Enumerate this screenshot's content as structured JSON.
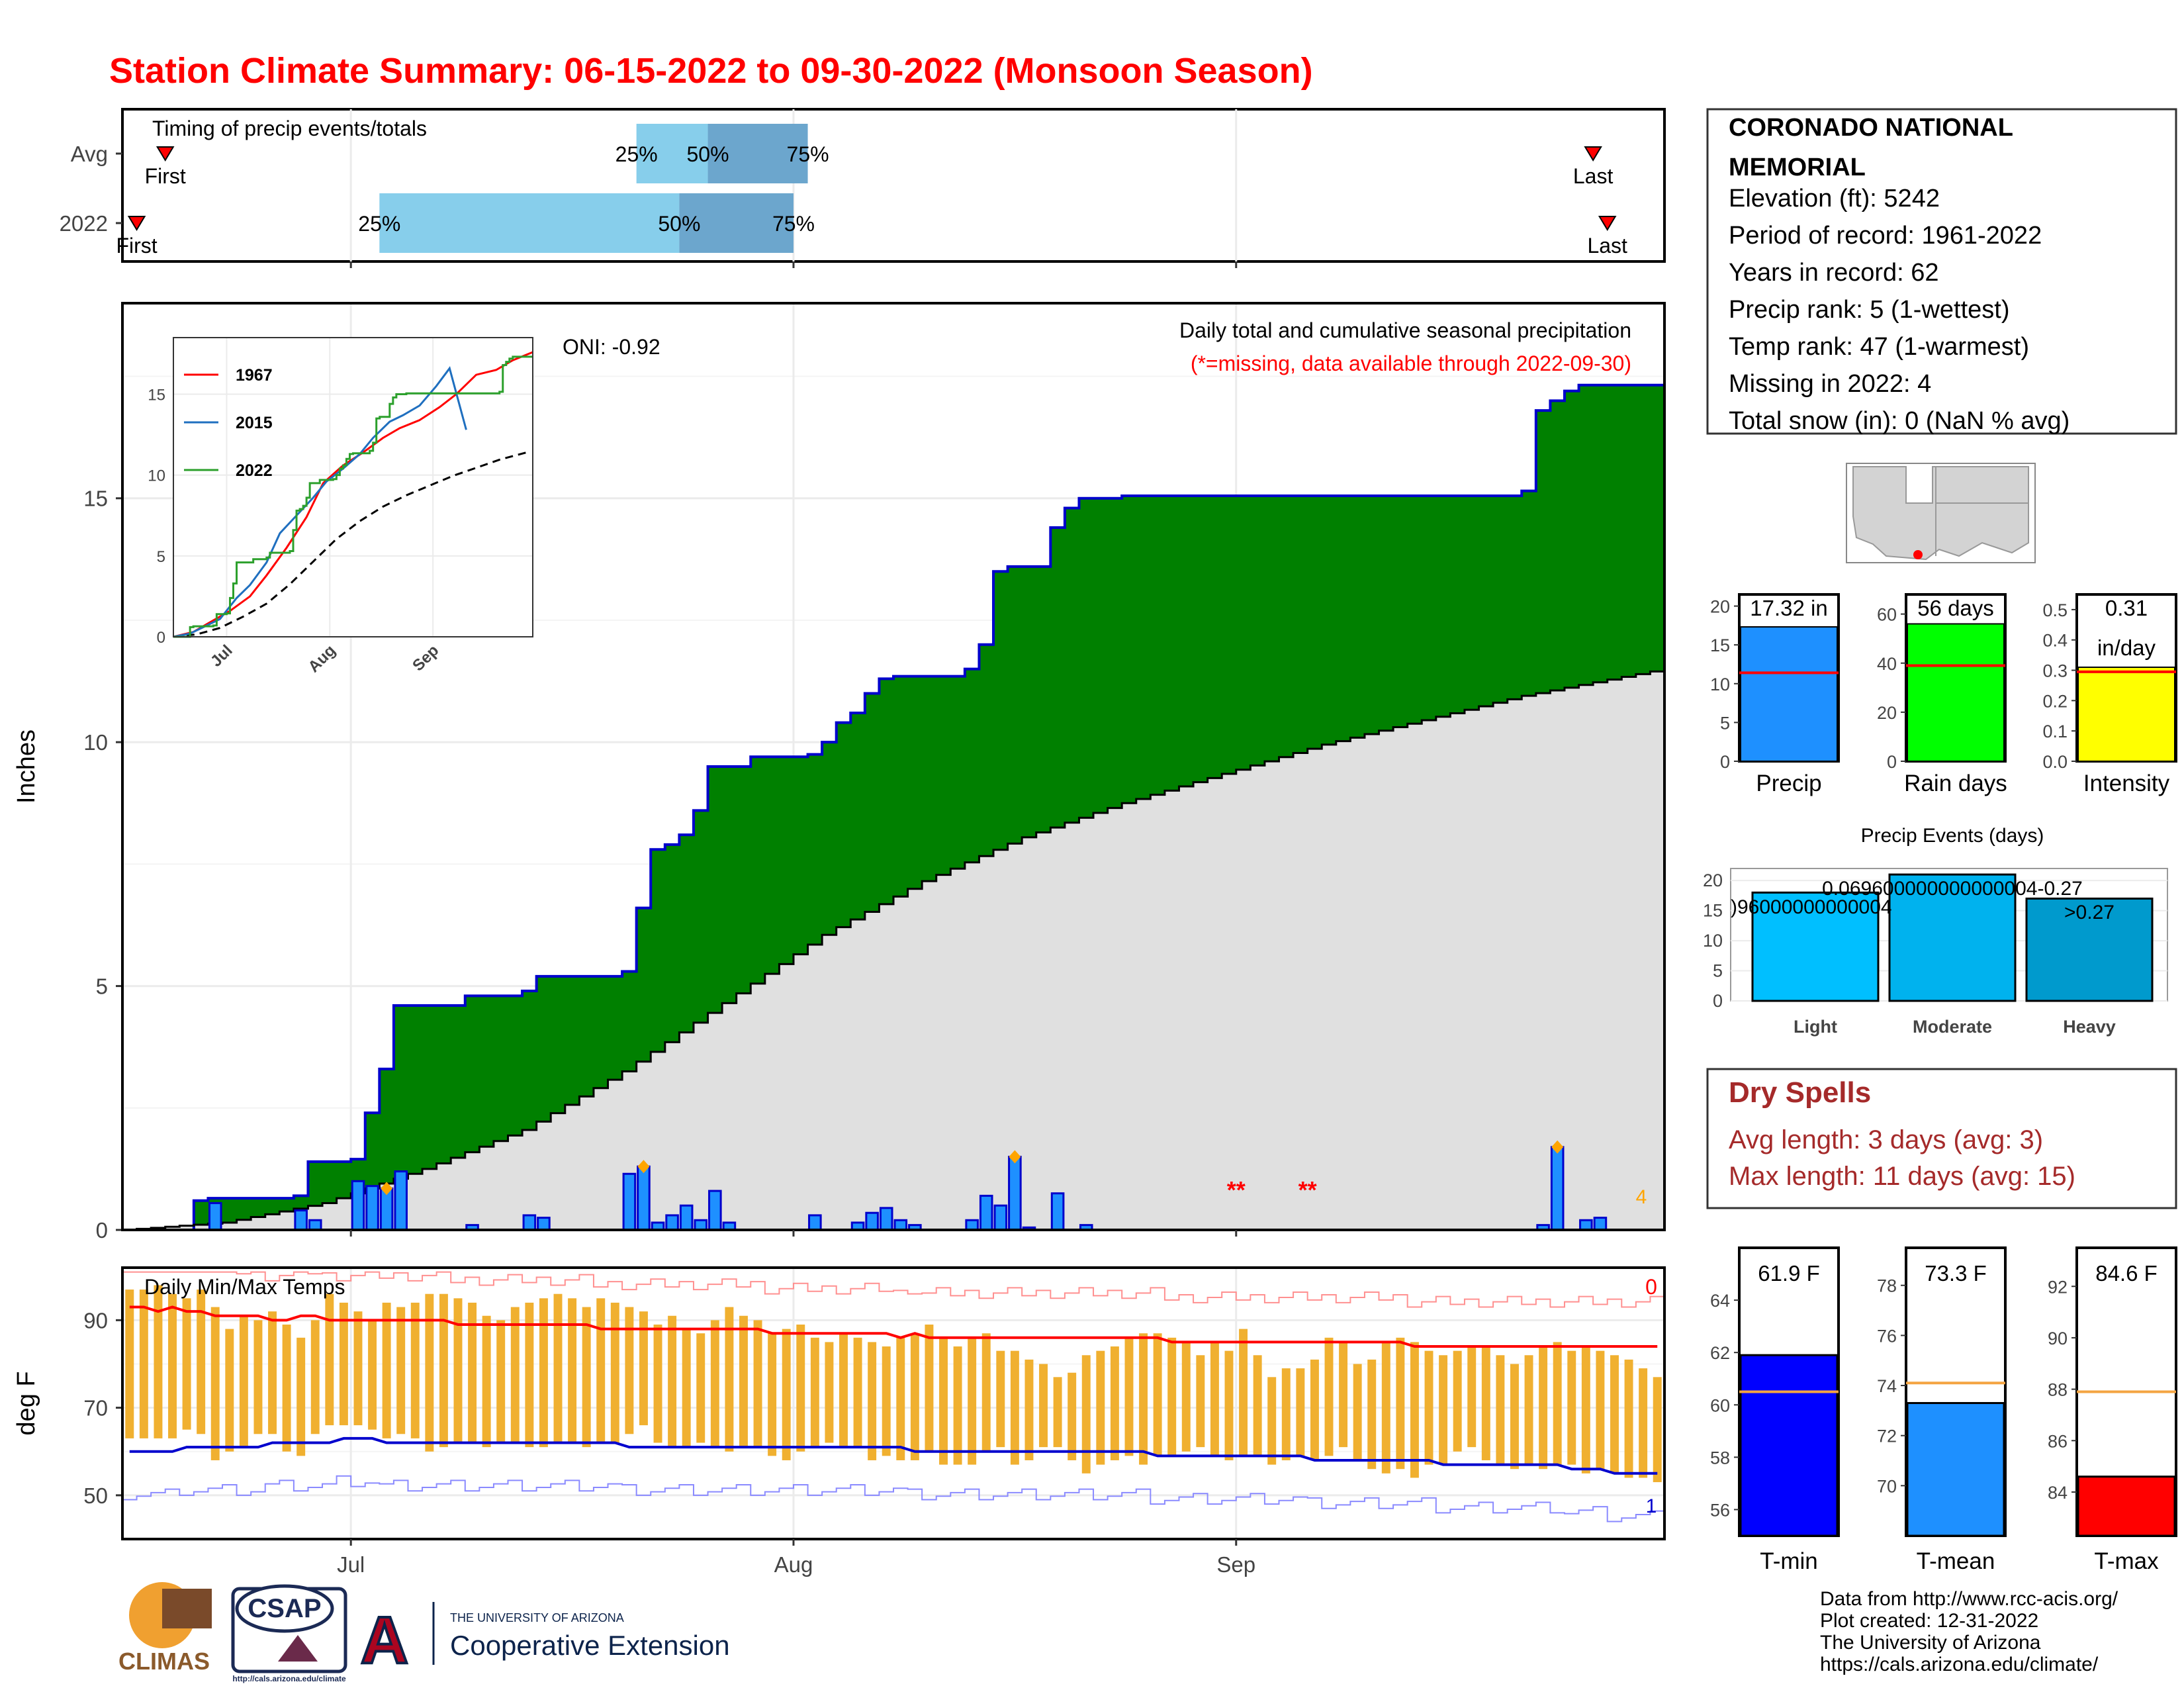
{
  "title": "Station Climate Summary: 06-15-2022 to 09-30-2022 (Monsoon Season)",
  "colors": {
    "title": "#ff0000",
    "observed_fill": "#008000",
    "observed_line": "#0000cc",
    "normal_fill": "#e0e0e0",
    "daily_bar": "#1e90ff",
    "q_light": "#87ceeb",
    "q_dark": "#6ca6cd",
    "precip_avg_line": "#ff0000",
    "temp_bar": "#f0b030",
    "tmax_line": "#ff0000",
    "tmin_line": "#0000cd",
    "dry_spells_text": "#a52a2a"
  },
  "timing": {
    "label": "Timing of precip events/totals",
    "rows": [
      {
        "name": "Avg",
        "first": "2022-06-18",
        "q25": "2022-07-21",
        "q50": "2022-07-26",
        "q75": "2022-08-02",
        "last": "2022-09-26"
      },
      {
        "name": "2022",
        "first": "2022-06-16",
        "q25": "2022-07-03",
        "q50": "2022-07-24",
        "q75": "2022-08-01",
        "last": "2022-09-27"
      }
    ],
    "first_label": "First",
    "last_label": "Last",
    "q_labels": [
      "25%",
      "50%",
      "75%"
    ]
  },
  "main": {
    "ylabel": "Inches",
    "yticks": [
      0,
      5,
      10,
      15
    ],
    "caption_line1": "Daily total and cumulative seasonal precipitation",
    "caption_line2": "(*=missing, data available through 2022-09-30)",
    "missing_count": "4",
    "missing_marker": "**"
  },
  "inset": {
    "oni": "ONI: -0.92",
    "yticks": [
      0,
      5,
      10,
      15
    ],
    "xticks": [
      "Jul",
      "Aug",
      "Sep"
    ],
    "legend": [
      {
        "name": "1967",
        "color": "#ff0000"
      },
      {
        "name": "2015",
        "color": "#1f6fbf"
      },
      {
        "name": "2022",
        "color": "#2ca02c"
      }
    ]
  },
  "temps": {
    "ylabel": "deg F",
    "label": "Daily Min/Max Temps",
    "yticks": [
      50,
      70,
      90
    ],
    "count_top": "0",
    "count_bottom": "1"
  },
  "xaxis": {
    "ticks": [
      "Jul",
      "Aug",
      "Sep"
    ]
  },
  "station": {
    "name_line1": "CORONADO NATIONAL",
    "name_line2": "MEMORIAL",
    "lines": [
      "Elevation (ft): 5242",
      "Period of record: 1961-2022",
      "Years in record: 62",
      "Precip rank: 5 (1-wettest)",
      "Temp rank: 47 (1-warmest)",
      "Missing in 2022: 4",
      "Total snow (in): 0 (NaN % avg)"
    ]
  },
  "mini_bars": [
    {
      "label": "Precip",
      "value_label": "17.32 in",
      "value_label2": "",
      "value": 17.32,
      "avg": 11.4,
      "ymax": 21.5,
      "ticks": [
        0,
        5,
        10,
        15,
        20
      ],
      "color": "#1e90ff",
      "avg_color": "#ff0000"
    },
    {
      "label": "Rain days",
      "value_label": "56 days",
      "value_label2": "",
      "value": 56,
      "avg": 39,
      "ymax": 68,
      "ticks": [
        0,
        20,
        40,
        60
      ],
      "color": "#00ff00",
      "avg_color": "#ff0000"
    },
    {
      "label": "Intensity",
      "value_label": "0.31",
      "value_label2": "in/day",
      "value": 0.31,
      "avg": 0.295,
      "ymax": 0.55,
      "ticks": [
        0.0,
        0.1,
        0.2,
        0.3,
        0.4,
        0.5
      ],
      "color": "#ffff00",
      "avg_color": "#ff0000"
    }
  ],
  "events": {
    "title": "Precip Events (days)",
    "yticks": [
      0,
      5,
      10,
      15,
      20
    ],
    "categories": [
      "Light",
      "Moderate",
      "Heavy"
    ],
    "values": [
      18,
      21,
      17
    ],
    "colors": [
      "#00bfff",
      "#00b2ee",
      "#009acd"
    ],
    "overlap_label_left": ")96000000000004",
    "overlap_label_mid": "0.069600000000000004-0.27",
    "heavy_label": ">0.27"
  },
  "dry_spells": {
    "title": "Dry Spells",
    "avg_line": "Avg length: 3 days (avg: 3)",
    "max_line": "Max length: 11 days (avg: 15)"
  },
  "temp_bars": [
    {
      "label": "T-min",
      "value_label": "61.9 F",
      "value": 61.9,
      "avg": 60.5,
      "ymin": 55,
      "ymax": 66,
      "ticks": [
        56,
        58,
        60,
        62,
        64
      ],
      "color": "#0000ff"
    },
    {
      "label": "T-mean",
      "value_label": "73.3 F",
      "value": 73.3,
      "avg": 74.1,
      "ymin": 68,
      "ymax": 79.5,
      "ticks": [
        70,
        72,
        74,
        76,
        78
      ],
      "color": "#1e90ff"
    },
    {
      "label": "T-max",
      "value_label": "84.6 F",
      "value": 84.6,
      "avg": 87.9,
      "ymin": 82.3,
      "ymax": 93.5,
      "ticks": [
        84,
        86,
        88,
        90,
        92
      ],
      "color": "#ff0000"
    }
  ],
  "credits": [
    "Data from http://www.rcc-acis.org/",
    "Plot created: 12-31-2022",
    "The University of Arizona",
    "https://cals.arizona.edu/climate/"
  ],
  "logos": {
    "climas": "CLIMAS",
    "csap": "CSAP",
    "csap_url": "http://cals.arizona.edu/climate",
    "ua_small": "THE UNIVERSITY OF ARIZONA",
    "ua_big": "Cooperative Extension",
    "ua_letter": "A"
  },
  "chart_data": {
    "type": "area",
    "title": "Daily total and cumulative seasonal precipitation",
    "ylabel": "Inches",
    "ylim": [
      0,
      19
    ],
    "start_date": "2022-06-15",
    "end_date": "2022-09-30",
    "series": [
      {
        "name": "observed cumulative",
        "x": [
          "2022-06-15",
          "2022-06-20",
          "2022-06-21",
          "2022-06-27",
          "2022-06-28",
          "2022-07-01",
          "2022-07-02",
          "2022-07-03",
          "2022-07-04",
          "2022-07-09",
          "2022-07-13",
          "2022-07-14",
          "2022-07-20",
          "2022-07-21",
          "2022-07-22",
          "2022-07-23",
          "2022-07-24",
          "2022-07-25",
          "2022-07-26",
          "2022-07-29",
          "2022-08-02",
          "2022-08-03",
          "2022-08-04",
          "2022-08-05",
          "2022-08-06",
          "2022-08-07",
          "2022-08-08",
          "2022-08-13",
          "2022-08-14",
          "2022-08-15",
          "2022-08-16",
          "2022-08-19",
          "2022-08-20",
          "2022-08-21",
          "2022-08-24",
          "2022-09-21",
          "2022-09-22",
          "2022-09-23",
          "2022-09-24",
          "2022-09-25",
          "2022-09-30"
        ],
        "y": [
          0.0,
          0.6,
          0.65,
          0.7,
          1.4,
          1.45,
          2.4,
          3.3,
          4.6,
          4.8,
          4.9,
          5.2,
          5.3,
          6.6,
          7.8,
          7.9,
          8.1,
          8.6,
          9.5,
          9.7,
          9.75,
          10.0,
          10.4,
          10.6,
          11.0,
          11.3,
          11.35,
          11.5,
          12.0,
          13.5,
          13.6,
          14.4,
          14.8,
          15.0,
          15.05,
          15.15,
          16.8,
          17.0,
          17.2,
          17.32,
          17.32
        ]
      },
      {
        "name": "normal cumulative",
        "x": [
          "2022-06-15",
          "2022-06-22",
          "2022-06-29",
          "2022-07-06",
          "2022-07-13",
          "2022-07-20",
          "2022-07-27",
          "2022-08-03",
          "2022-08-10",
          "2022-08-17",
          "2022-08-24",
          "2022-08-31",
          "2022-09-07",
          "2022-09-14",
          "2022-09-21",
          "2022-09-30"
        ],
        "y": [
          0.0,
          0.15,
          0.55,
          1.25,
          2.05,
          3.25,
          4.65,
          6.05,
          7.15,
          8.05,
          8.75,
          9.35,
          9.95,
          10.45,
          10.95,
          11.45
        ]
      }
    ],
    "daily": [
      {
        "x": "2022-06-21",
        "y": 0.55
      },
      {
        "x": "2022-06-27",
        "y": 0.4
      },
      {
        "x": "2022-06-28",
        "y": 0.2
      },
      {
        "x": "2022-07-01",
        "y": 1.0
      },
      {
        "x": "2022-07-02",
        "y": 0.9
      },
      {
        "x": "2022-07-03",
        "y": 0.85
      },
      {
        "x": "2022-07-04",
        "y": 1.2
      },
      {
        "x": "2022-07-09",
        "y": 0.1
      },
      {
        "x": "2022-07-13",
        "y": 0.3
      },
      {
        "x": "2022-07-14",
        "y": 0.25
      },
      {
        "x": "2022-07-20",
        "y": 1.15
      },
      {
        "x": "2022-07-21",
        "y": 1.3
      },
      {
        "x": "2022-07-22",
        "y": 0.15
      },
      {
        "x": "2022-07-23",
        "y": 0.3
      },
      {
        "x": "2022-07-24",
        "y": 0.5
      },
      {
        "x": "2022-07-25",
        "y": 0.2
      },
      {
        "x": "2022-07-26",
        "y": 0.8
      },
      {
        "x": "2022-07-27",
        "y": 0.15
      },
      {
        "x": "2022-08-02",
        "y": 0.3
      },
      {
        "x": "2022-08-05",
        "y": 0.15
      },
      {
        "x": "2022-08-06",
        "y": 0.35
      },
      {
        "x": "2022-08-07",
        "y": 0.45
      },
      {
        "x": "2022-08-08",
        "y": 0.2
      },
      {
        "x": "2022-08-09",
        "y": 0.1
      },
      {
        "x": "2022-08-13",
        "y": 0.2
      },
      {
        "x": "2022-08-14",
        "y": 0.7
      },
      {
        "x": "2022-08-15",
        "y": 0.5
      },
      {
        "x": "2022-08-16",
        "y": 1.5
      },
      {
        "x": "2022-08-17",
        "y": 0.05
      },
      {
        "x": "2022-08-19",
        "y": 0.75
      },
      {
        "x": "2022-08-21",
        "y": 0.1
      },
      {
        "x": "2022-09-22",
        "y": 0.1
      },
      {
        "x": "2022-09-23",
        "y": 1.7
      },
      {
        "x": "2022-09-25",
        "y": 0.2
      },
      {
        "x": "2022-09-26",
        "y": 0.25
      }
    ],
    "max_markers": [
      "2022-07-03",
      "2022-07-21",
      "2022-08-16",
      "2022-09-23"
    ],
    "missing": [
      "2022-08-31",
      "2022-09-01",
      "2022-09-05",
      "2022-09-06"
    ],
    "temps": {
      "ylim": [
        40,
        102
      ],
      "tmax": [
        97,
        97,
        98,
        96,
        95,
        97,
        93,
        88,
        91,
        90,
        92,
        89,
        86,
        90,
        96,
        94,
        92,
        90,
        94,
        93,
        94,
        96,
        96,
        95,
        94,
        91,
        90,
        93,
        94,
        95,
        96,
        95,
        93,
        95,
        94,
        93,
        92,
        89,
        91,
        88,
        87,
        90,
        93,
        91,
        90,
        87,
        88,
        89,
        86,
        85,
        87,
        86,
        85,
        84,
        86,
        87,
        89,
        86,
        84,
        86,
        87,
        83,
        83,
        81,
        80,
        77,
        78,
        82,
        83,
        84,
        86,
        87,
        87,
        86,
        85,
        82,
        85,
        83,
        88,
        82,
        77,
        79,
        79,
        81,
        86,
        85,
        80,
        81,
        85,
        86,
        85,
        83,
        82,
        83,
        84,
        84,
        82,
        80,
        82,
        84,
        85,
        83,
        84,
        83,
        82,
        81,
        79,
        77
      ],
      "tmin": [
        63,
        63,
        63,
        63,
        65,
        64,
        58,
        60,
        61,
        64,
        64,
        60,
        59,
        64,
        66,
        66,
        66,
        65,
        63,
        64,
        63,
        60,
        61,
        62,
        62,
        61,
        62,
        62,
        61,
        61,
        62,
        62,
        61,
        62,
        62,
        64,
        66,
        62,
        61,
        61,
        62,
        61,
        60,
        61,
        61,
        59,
        58,
        60,
        61,
        62,
        61,
        61,
        58,
        59,
        58,
        58,
        60,
        57,
        57,
        57,
        60,
        61,
        57,
        58,
        61,
        61,
        58,
        55,
        57,
        58,
        59,
        57,
        59,
        59,
        60,
        61,
        59,
        58,
        59,
        59,
        57,
        58,
        59,
        58,
        59,
        61,
        58,
        56,
        55,
        56,
        54,
        57,
        57,
        60,
        61,
        58,
        57,
        56,
        57,
        56,
        57,
        57,
        55,
        56,
        55,
        54,
        54,
        53
      ],
      "avg_max": [
        93,
        93,
        92,
        93,
        92,
        92,
        91,
        91,
        91,
        91,
        90,
        90,
        91,
        91,
        90,
        90,
        90,
        90,
        90,
        90,
        90,
        90,
        90,
        89,
        89,
        89,
        89,
        89,
        89,
        89,
        89,
        89,
        89,
        88,
        88,
        88,
        88,
        88,
        88,
        88,
        88,
        88,
        88,
        88,
        88,
        87,
        87,
        87,
        87,
        87,
        87,
        87,
        87,
        87,
        86,
        87,
        86,
        86,
        86,
        86,
        86,
        86,
        86,
        86,
        86,
        86,
        86,
        86,
        86,
        86,
        86,
        86,
        86,
        85,
        85,
        85,
        85,
        85,
        85,
        85,
        85,
        85,
        85,
        85,
        85,
        85,
        85,
        85,
        85,
        85,
        84,
        84,
        84,
        84,
        84,
        84,
        84,
        84,
        84,
        84,
        84,
        84,
        84,
        84,
        84,
        84,
        84,
        84
      ],
      "avg_min": [
        60,
        60,
        60,
        60,
        61,
        61,
        61,
        61,
        61,
        61,
        62,
        62,
        62,
        62,
        62,
        63,
        63,
        63,
        62,
        62,
        62,
        62,
        62,
        62,
        62,
        62,
        62,
        62,
        62,
        62,
        62,
        62,
        62,
        62,
        62,
        61,
        61,
        61,
        61,
        61,
        61,
        61,
        61,
        61,
        61,
        61,
        61,
        61,
        61,
        61,
        61,
        61,
        61,
        61,
        61,
        60,
        60,
        60,
        60,
        60,
        60,
        60,
        60,
        60,
        60,
        60,
        60,
        60,
        60,
        60,
        60,
        60,
        59,
        59,
        59,
        59,
        59,
        59,
        59,
        59,
        59,
        59,
        59,
        58,
        58,
        58,
        58,
        58,
        58,
        58,
        58,
        58,
        57,
        57,
        57,
        57,
        57,
        57,
        57,
        57,
        57,
        56,
        56,
        56,
        55,
        55,
        55,
        55
      ]
    }
  }
}
